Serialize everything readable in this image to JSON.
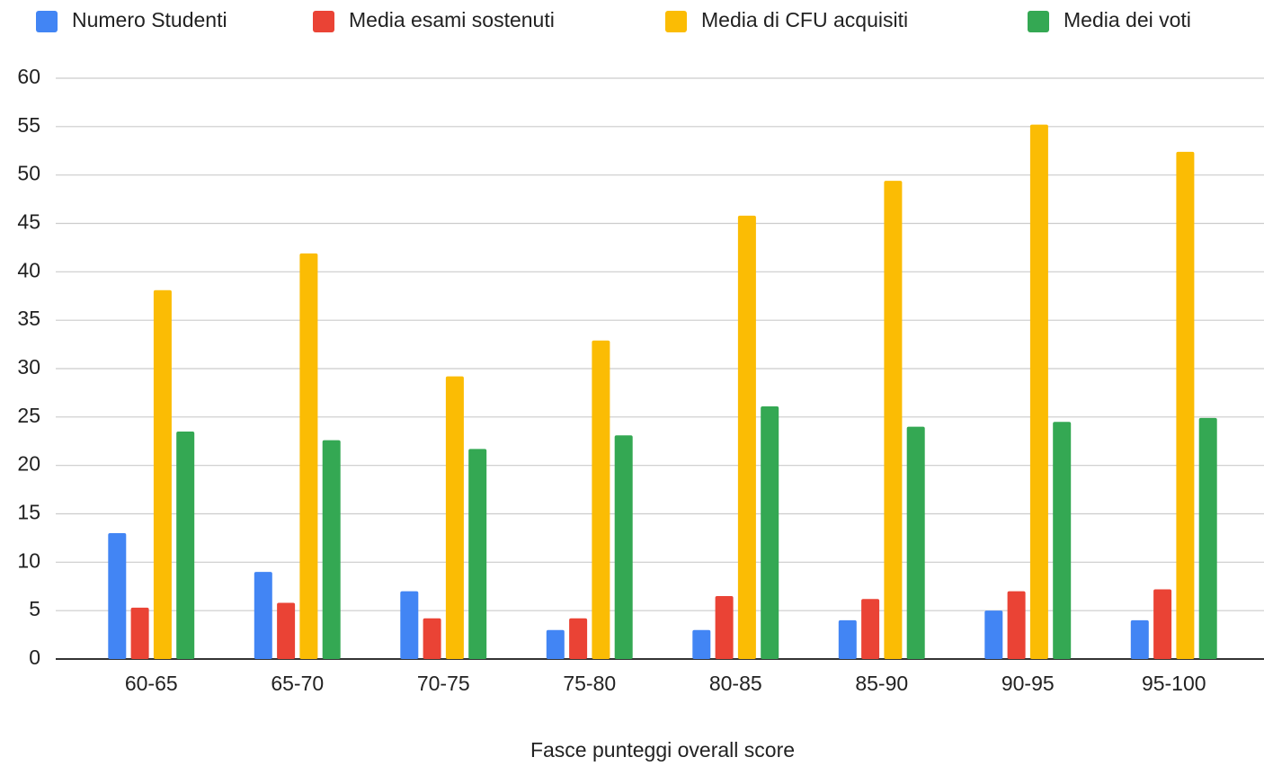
{
  "chart_data": {
    "type": "bar",
    "x_label": "Fasce punteggi overall score",
    "categories": [
      "60-65",
      "65-70",
      "70-75",
      "75-80",
      "80-85",
      "85-90",
      "90-95",
      "95-100"
    ],
    "series": [
      {
        "name": "Numero Studenti",
        "color": "#4285f4",
        "values": [
          13,
          9,
          7,
          3,
          3,
          4,
          5,
          4
        ]
      },
      {
        "name": "Media esami sostenuti",
        "color": "#ea4335",
        "values": [
          5.3,
          5.8,
          4.2,
          4.2,
          6.5,
          6.2,
          7,
          7.2
        ]
      },
      {
        "name": "Media di CFU acquisiti",
        "color": "#fbbc04",
        "values": [
          38.1,
          41.9,
          29.2,
          32.9,
          45.8,
          49.4,
          55.2,
          52.4
        ]
      },
      {
        "name": "Media dei voti",
        "color": "#34a853",
        "values": [
          23.5,
          22.6,
          21.7,
          23.1,
          26.1,
          24,
          24.5,
          24.9
        ]
      }
    ],
    "ylim": [
      0,
      60
    ],
    "yticks": [
      0,
      5,
      10,
      15,
      20,
      25,
      30,
      35,
      40,
      45,
      50,
      55,
      60
    ],
    "grid": true,
    "legend": "top"
  }
}
